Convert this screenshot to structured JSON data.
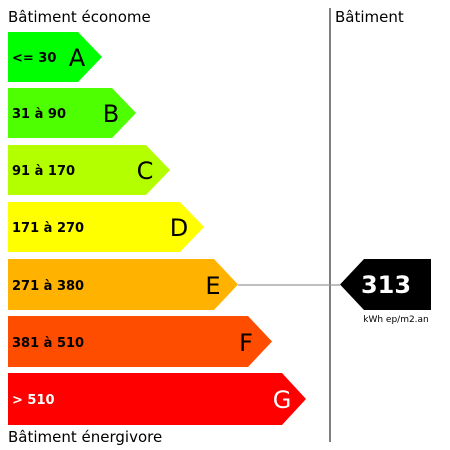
{
  "header": {
    "left_title": "Bâtiment économe",
    "right_title": "Bâtiment"
  },
  "footer": {
    "left_title": "Bâtiment énergivore"
  },
  "classes": [
    {
      "range": "<= 30",
      "letter": "A",
      "color": "#00ff00",
      "text_color": "#000000"
    },
    {
      "range": "31 à 90",
      "letter": "B",
      "color": "#4dff00",
      "text_color": "#000000"
    },
    {
      "range": "91 à 170",
      "letter": "C",
      "color": "#b3ff00",
      "text_color": "#000000"
    },
    {
      "range": "171 à 270",
      "letter": "D",
      "color": "#ffff00",
      "text_color": "#000000"
    },
    {
      "range": "271 à 380",
      "letter": "E",
      "color": "#ffb300",
      "text_color": "#000000"
    },
    {
      "range": "381 à 510",
      "letter": "F",
      "color": "#ff4d00",
      "text_color": "#000000"
    },
    {
      "range": "> 510",
      "letter": "G",
      "color": "#ff0000",
      "text_color": "#ffffff"
    }
  ],
  "indicator": {
    "value": "313",
    "unit": "kWh ep/m2.an",
    "class_letter": "E",
    "color": "#000000"
  }
}
